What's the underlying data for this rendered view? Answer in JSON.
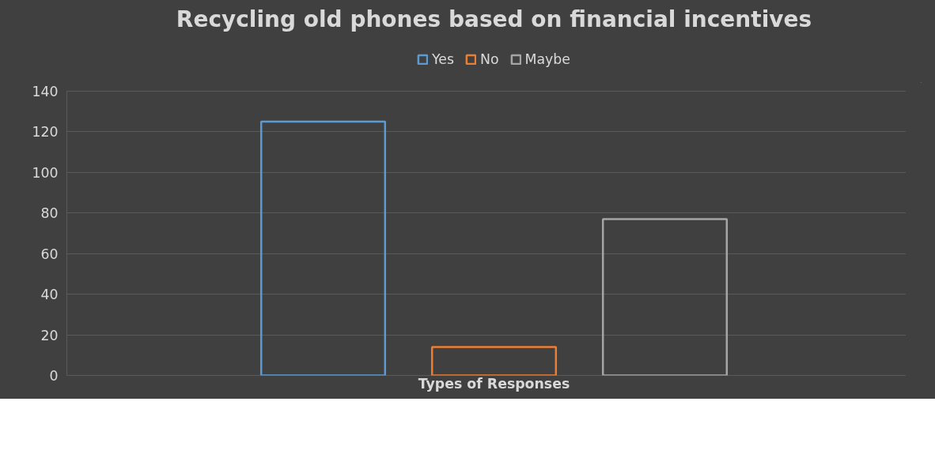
{
  "chart_data": {
    "type": "bar",
    "title": "Recycling old phones based on financial incentives",
    "xlabel": "Types of Responses",
    "categories": [
      null
    ],
    "series": [
      {
        "name": "Yes",
        "color": "#5b9bd5",
        "values": [
          125
        ]
      },
      {
        "name": "No",
        "color": "#ed7d31",
        "values": [
          14
        ]
      },
      {
        "name": "Maybe",
        "color": "#a5a5a5",
        "values": [
          77
        ]
      }
    ],
    "ylim": [
      0,
      140
    ],
    "yticks": [
      0,
      20,
      40,
      60,
      80,
      100,
      120,
      140
    ],
    "grid": "y",
    "legend": "top"
  }
}
